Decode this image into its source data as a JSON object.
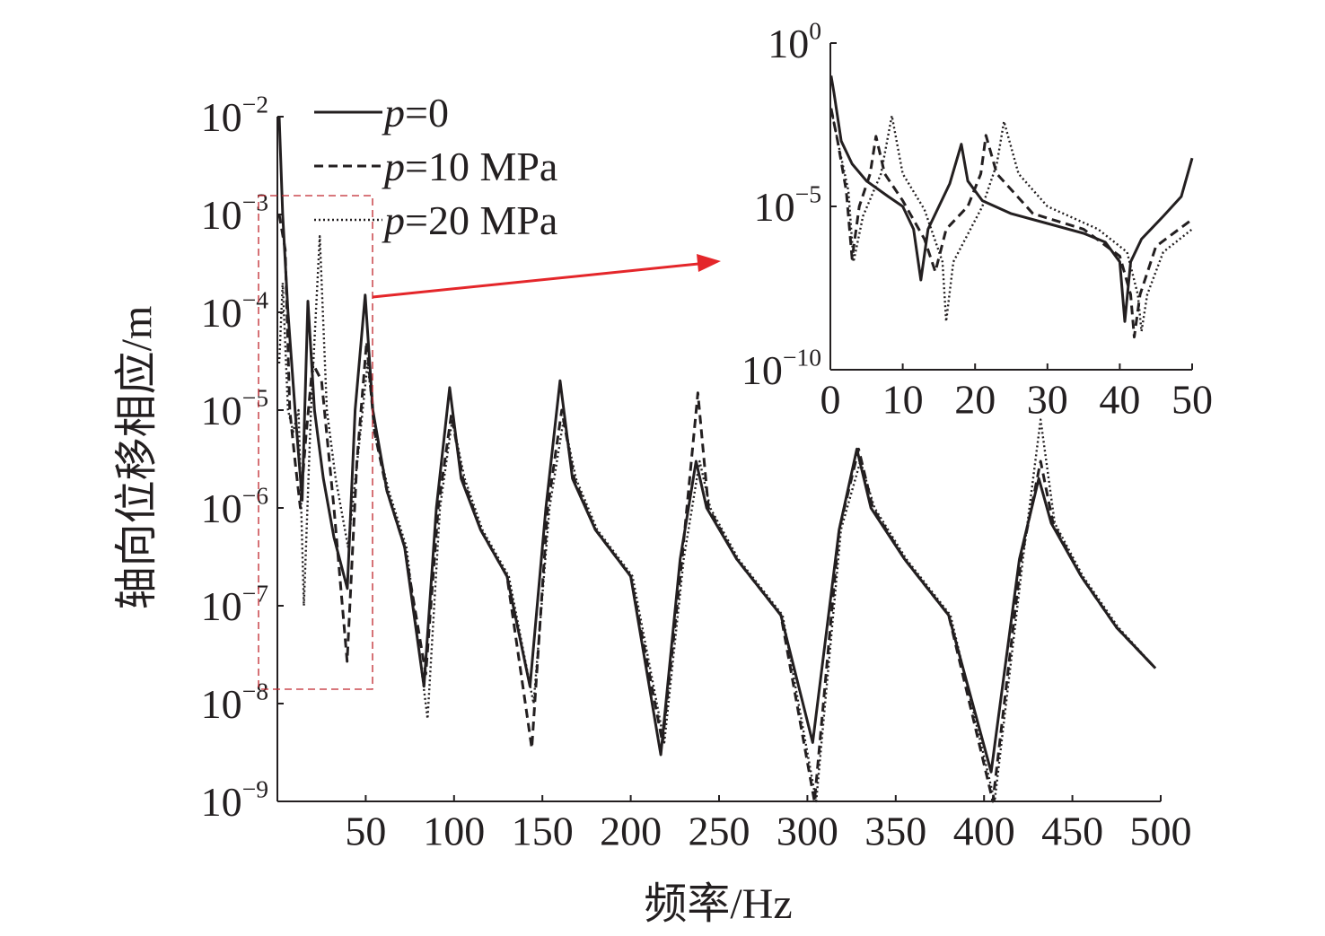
{
  "chart_data": [
    {
      "type": "line",
      "name": "main",
      "xlabel": "频率/Hz",
      "ylabel": "轴向位移相应/m",
      "xlim": [
        0,
        500
      ],
      "ylim_exp": [
        -9,
        -2
      ],
      "yscale": "log",
      "xticks": [
        50,
        100,
        150,
        200,
        250,
        300,
        350,
        400,
        450,
        500
      ],
      "yticks_exp": [
        -9,
        -8,
        -7,
        -6,
        -5,
        -4,
        -3,
        -2
      ],
      "ytick_base": "10",
      "legend_position": "top-left",
      "series": [
        {
          "name": "p=0",
          "label_var": "p",
          "label_rest": "=0",
          "style": "solid",
          "x": [
            1,
            3,
            6,
            10,
            14,
            17.3,
            21,
            26,
            32,
            39.6,
            44,
            49.7,
            54,
            62,
            72,
            83,
            90,
            97.5,
            104,
            115,
            130,
            143,
            152,
            160,
            167,
            180,
            200,
            217,
            228,
            237,
            243,
            260,
            285,
            303,
            318,
            328,
            336,
            355,
            380,
            404,
            420,
            431,
            438,
            455,
            475,
            497
          ],
          "y": [
            0.01,
            0.001,
            0.0001,
            1e-05,
            1.2e-06,
            0.00013,
            1e-05,
            2e-06,
            5e-07,
            1.5e-07,
            1e-05,
            0.00015,
            1e-05,
            1.5e-06,
            4e-07,
            1.5e-08,
            1e-06,
            1.7e-05,
            2e-06,
            6e-07,
            2e-07,
            1.5e-08,
            1e-06,
            2e-05,
            2e-06,
            6e-07,
            2e-07,
            3e-09,
            3e-07,
            3e-06,
            1e-06,
            3e-07,
            8e-08,
            4e-09,
            6e-07,
            4e-06,
            1e-06,
            3e-07,
            8e-08,
            2e-09,
            3e-07,
            2e-06,
            7e-07,
            2e-07,
            6e-08,
            2.3e-08
          ]
        },
        {
          "name": "p=10 MPa",
          "label_var": "p",
          "label_rest": "=10 MPa",
          "style": "dashed",
          "x": [
            1,
            4.4,
            7,
            10,
            13,
            16,
            20,
            25,
            32,
            39.5,
            45,
            50.5,
            55,
            62,
            72,
            84,
            91,
            98.5,
            105,
            115,
            130,
            144,
            153,
            161,
            168,
            180,
            200,
            218,
            229,
            238,
            244,
            260,
            285,
            304,
            318,
            329,
            337,
            355,
            380,
            405,
            421,
            432,
            439,
            455,
            475,
            497
          ],
          "y": [
            0.001,
            0.00044,
            1e-05,
            3e-06,
            1e-06,
            5e-06,
            3e-05,
            2e-05,
            1e-06,
            2.7e-08,
            3e-06,
            5e-05,
            6e-06,
            1.5e-06,
            4e-07,
            2e-08,
            1e-06,
            9e-06,
            2e-06,
            6e-07,
            2e-07,
            3.5e-09,
            1e-06,
            1e-05,
            2e-06,
            6e-07,
            2e-07,
            4e-09,
            3e-07,
            1.5e-05,
            1e-06,
            3e-07,
            8e-08,
            1e-09,
            6e-07,
            4e-06,
            1e-06,
            3e-07,
            8e-08,
            1e-09,
            3e-07,
            3e-06,
            7e-07,
            2e-07,
            6e-08,
            2.3e-08
          ]
        },
        {
          "name": "p=20 MPa",
          "label_var": "p",
          "label_rest": "=20 MPa",
          "style": "dotted",
          "x": [
            1,
            3,
            6,
            9,
            12,
            15,
            19,
            24,
            28,
            33,
            40,
            46,
            51,
            56,
            63,
            73,
            85,
            92,
            99,
            106,
            116,
            131,
            145,
            154,
            162,
            169,
            181,
            201,
            219,
            230,
            239,
            245,
            261,
            286,
            305,
            319,
            330,
            338,
            356,
            381,
            406,
            422,
            432,
            440,
            456,
            476,
            497
          ],
          "y": [
            3e-05,
            0.0002,
            1e-05,
            6e-06,
            1e-05,
            1e-07,
            1e-05,
            0.0006,
            1e-05,
            2e-06,
            4e-07,
            4e-06,
            3e-05,
            5e-06,
            1.5e-06,
            4e-07,
            7e-09,
            1e-06,
            8e-06,
            2e-06,
            6e-07,
            2e-07,
            1e-08,
            1e-06,
            8e-06,
            2e-06,
            6e-07,
            2e-07,
            4e-09,
            3e-07,
            3e-06,
            1e-06,
            3e-07,
            8e-08,
            1e-09,
            6e-07,
            3e-06,
            1e-06,
            3e-07,
            8e-08,
            1e-09,
            3e-07,
            8e-06,
            7e-07,
            2e-07,
            6e-08,
            2.3e-08
          ]
        }
      ]
    },
    {
      "type": "line",
      "name": "inset",
      "xlim": [
        0,
        50
      ],
      "ylim_exp": [
        -10,
        0
      ],
      "yscale": "log",
      "xticks": [
        0,
        10,
        20,
        30,
        40,
        50
      ],
      "yticks_exp": [
        -10,
        -5,
        0
      ],
      "ytick_base": "10",
      "series": [
        {
          "name": "p=0",
          "style": "solid",
          "x": [
            0.1,
            0.5,
            1.5,
            3,
            5,
            8,
            10,
            11.5,
            12.5,
            13.5,
            15,
            16.5,
            18.1,
            19,
            21,
            25,
            30,
            35,
            38,
            40,
            40.7,
            41.5,
            43,
            46,
            48.5,
            50
          ],
          "y": [
            0.1,
            0.03,
            0.001,
            0.0002,
            6e-05,
            2e-05,
            1e-05,
            2e-06,
            5.6e-08,
            2e-06,
            1e-05,
            5e-05,
            0.0008,
            6e-05,
            1.5e-05,
            6e-06,
            3e-06,
            1.5e-06,
            8e-07,
            2e-07,
            3e-09,
            2e-07,
            1e-06,
            5e-06,
            2e-05,
            0.0003
          ]
        },
        {
          "name": "p=10 MPa",
          "style": "dashed",
          "x": [
            0.1,
            1,
            2.2,
            3,
            4,
            5.5,
            6.3,
            7.5,
            10,
            13,
            14.5,
            16,
            19,
            20.8,
            21.5,
            23,
            28,
            35,
            40,
            41.5,
            42,
            42.8,
            45,
            50
          ],
          "y": [
            0.01,
            0.001,
            3e-05,
            2.5e-07,
            1e-05,
            0.0001,
            0.0014,
            0.0001,
            1.5e-05,
            1e-06,
            1e-07,
            2e-06,
            1e-05,
            0.0001,
            0.0015,
            0.0001,
            6e-06,
            2e-06,
            3e-07,
            2e-08,
            1e-09,
            2e-08,
            6e-07,
            4e-06
          ]
        },
        {
          "name": "p=20 MPa",
          "style": "dotted",
          "x": [
            0.1,
            1,
            2.5,
            3.2,
            4.5,
            7,
            8.5,
            10,
            13,
            15.5,
            16,
            17,
            21,
            23,
            24,
            26,
            30,
            37,
            41,
            42.5,
            43,
            43.8,
            46,
            50
          ],
          "y": [
            0.01,
            0.001,
            3e-05,
            2e-07,
            5e-06,
            0.0001,
            0.006,
            0.0001,
            8e-06,
            2e-07,
            3e-09,
            2e-07,
            1e-05,
            0.0002,
            0.004,
            0.0001,
            1e-05,
            2e-06,
            4e-07,
            2e-08,
            1.5e-09,
            2e-08,
            4e-07,
            2e-06
          ]
        }
      ]
    }
  ],
  "annotation": {
    "box_color": "#c0262d",
    "arrow_color": "#e4262a"
  }
}
